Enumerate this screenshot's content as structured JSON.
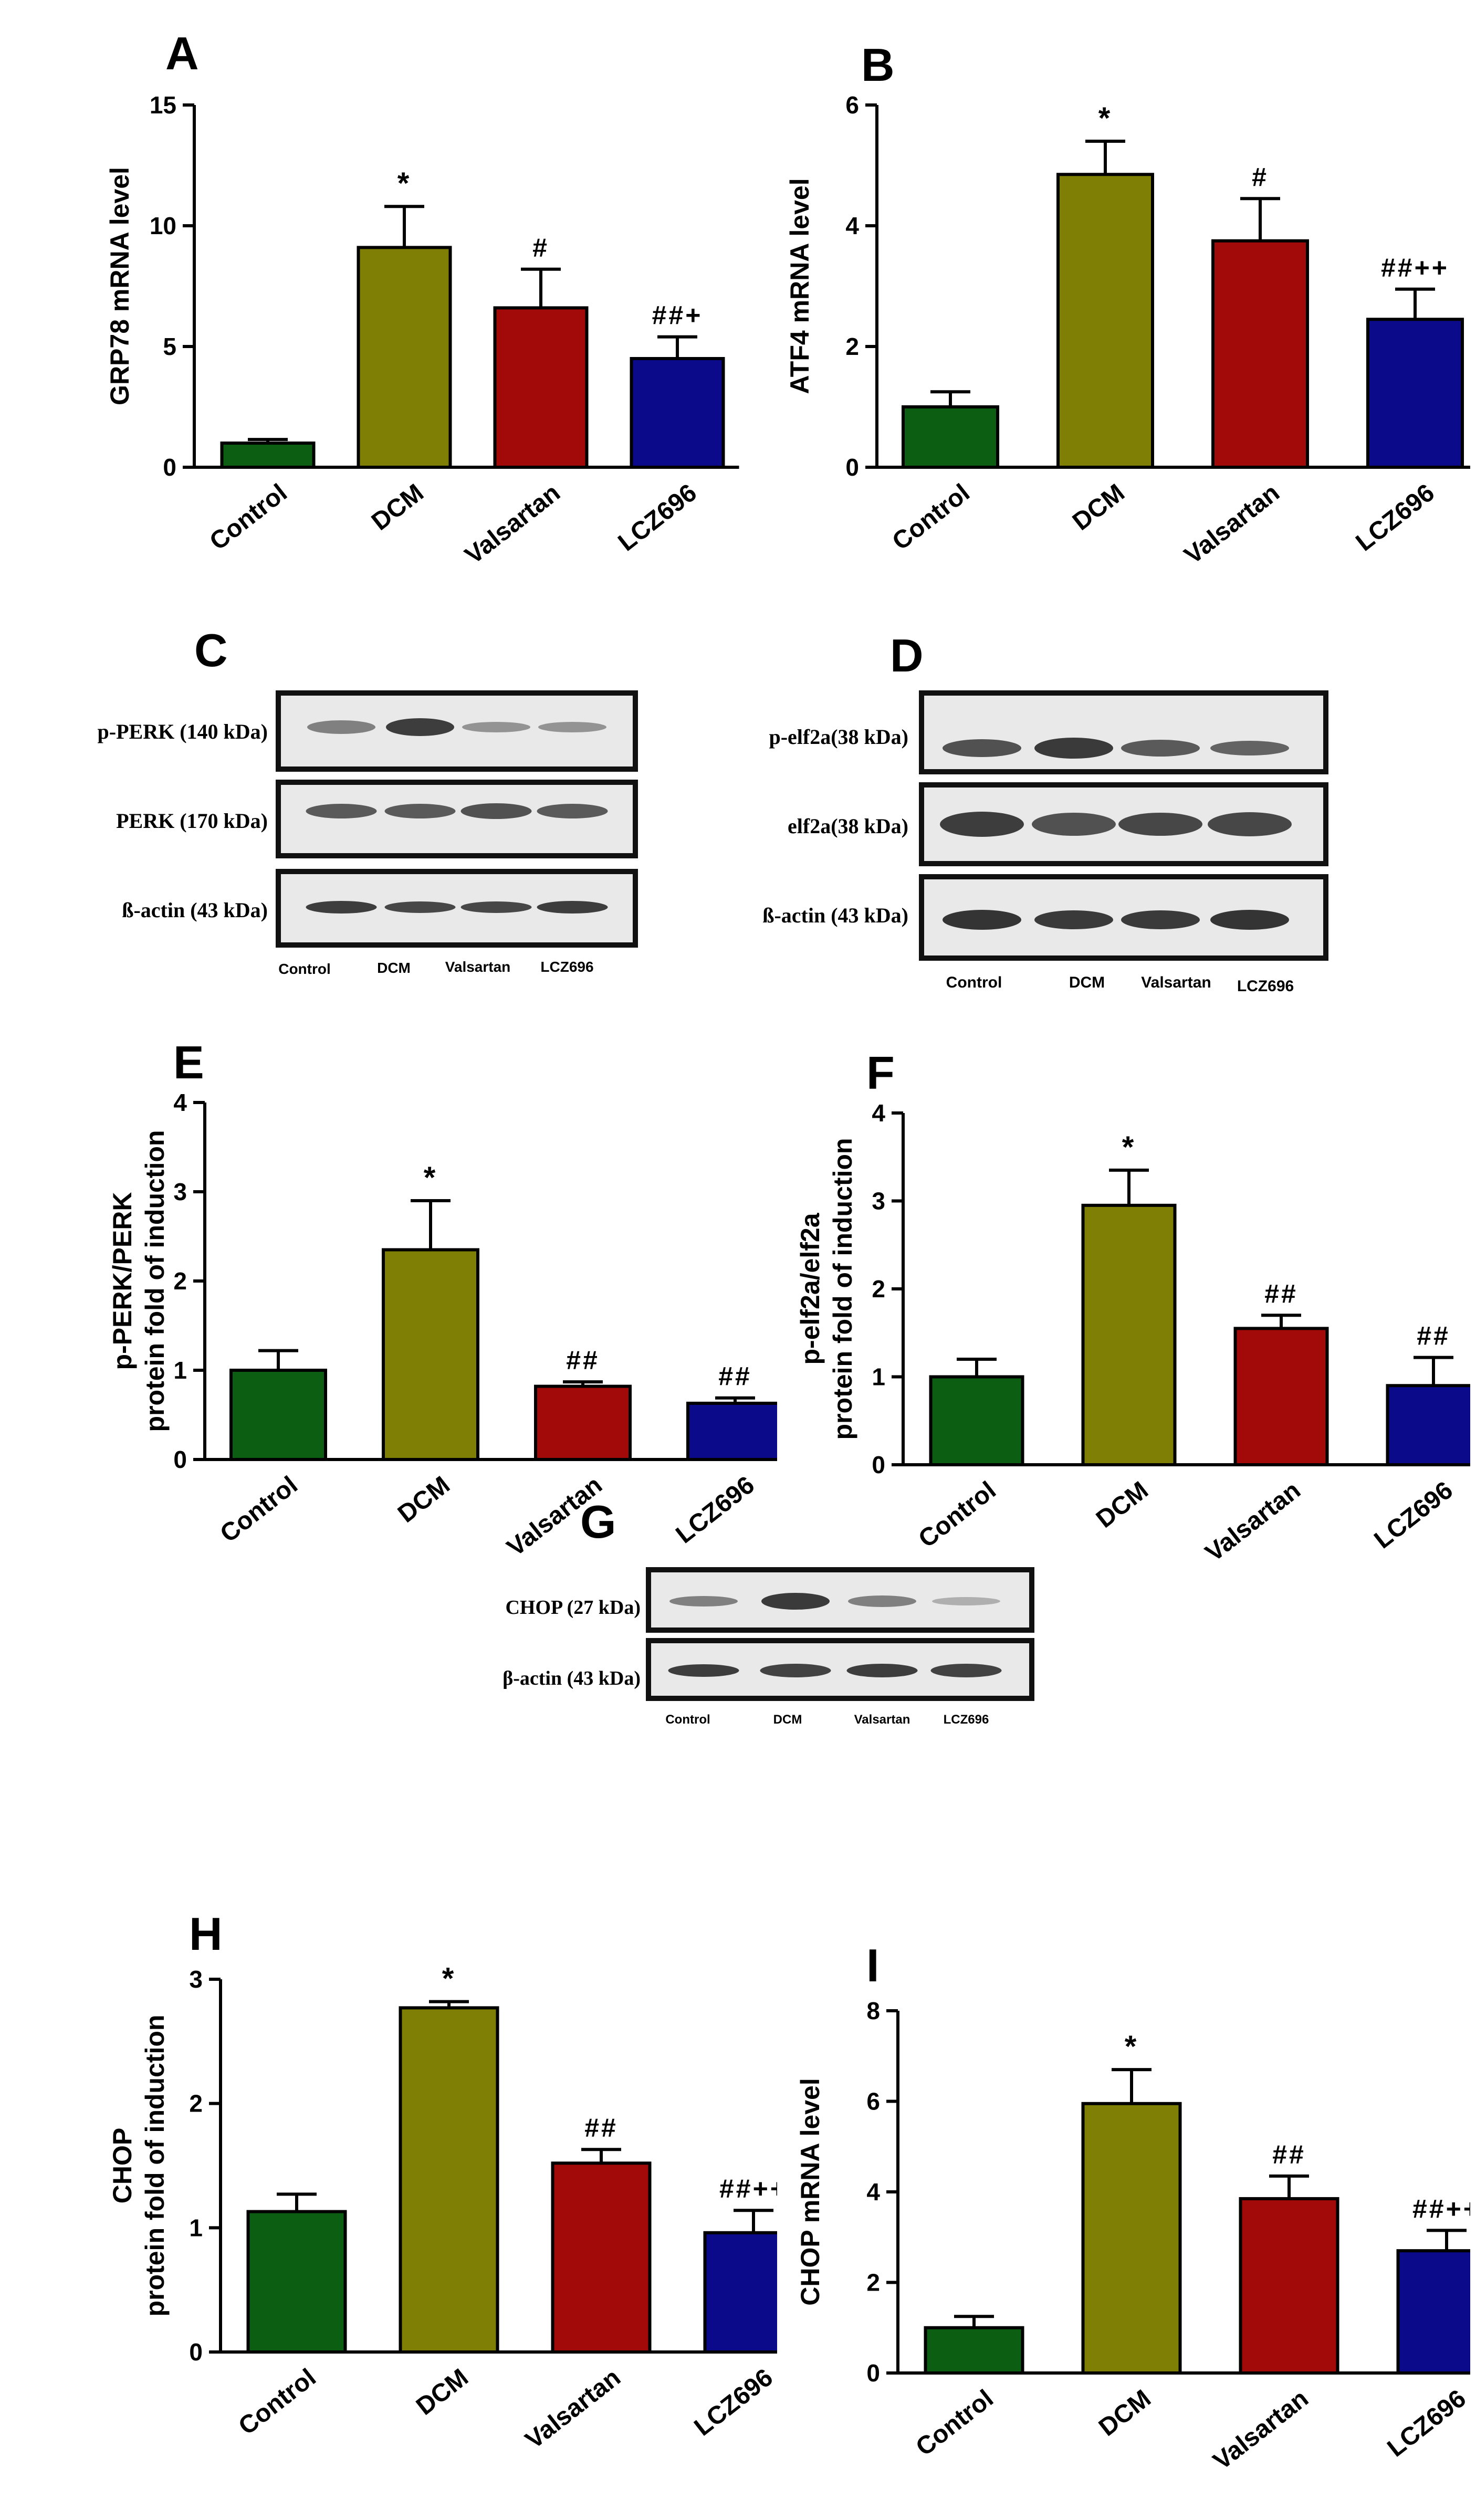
{
  "colors": {
    "control": "#0b5e12",
    "dcm": "#7f7f05",
    "valsartan": "#a20a0a",
    "lcz696": "#0a0a8a",
    "band": "#2a2a2a",
    "blot_bg": "#e8e8e8"
  },
  "chart_data": [
    {
      "panel": "A",
      "type": "bar",
      "categories": [
        "Control",
        "DCM",
        "Valsartan",
        "LCZ696"
      ],
      "values": [
        1.0,
        9.1,
        6.6,
        4.5
      ],
      "errors": [
        0.15,
        1.7,
        1.6,
        0.9
      ],
      "annotations": [
        "",
        "*",
        "#",
        "##+"
      ],
      "ylabel": "GRP78 mRNA level",
      "ylim": [
        0,
        15
      ],
      "yticks": [
        "0",
        "5",
        "10",
        "15"
      ]
    },
    {
      "panel": "B",
      "type": "bar",
      "categories": [
        "Control",
        "DCM",
        "Valsartan",
        "LCZ696"
      ],
      "values": [
        1.0,
        4.85,
        3.75,
        2.45
      ],
      "errors": [
        0.25,
        0.55,
        0.7,
        0.5
      ],
      "annotations": [
        "",
        "*",
        "#",
        "##++"
      ],
      "ylabel": "ATF4 mRNA level",
      "ylim": [
        0,
        6
      ],
      "yticks": [
        "0",
        "2",
        "4",
        "6"
      ]
    },
    {
      "panel": "E",
      "type": "bar",
      "categories": [
        "Control",
        "DCM",
        "Valsartan",
        "LCZ696"
      ],
      "values": [
        1.0,
        2.35,
        0.82,
        0.63
      ],
      "errors": [
        0.22,
        0.55,
        0.05,
        0.06
      ],
      "annotations": [
        "",
        "*",
        "##",
        "##"
      ],
      "ylabel": [
        "p-PERK/PERK",
        "protein fold of induction"
      ],
      "ylim": [
        0,
        4
      ],
      "yticks": [
        "0",
        "1",
        "2",
        "3",
        "4"
      ]
    },
    {
      "panel": "F",
      "type": "bar",
      "categories": [
        "Control",
        "DCM",
        "Valsartan",
        "LCZ696"
      ],
      "values": [
        1.0,
        2.95,
        1.55,
        0.9
      ],
      "errors": [
        0.2,
        0.4,
        0.15,
        0.32
      ],
      "annotations": [
        "",
        "*",
        "##",
        "##"
      ],
      "ylabel": [
        "p-elf2a/elf2a",
        "protein fold of induction"
      ],
      "ylim": [
        0,
        4
      ],
      "yticks": [
        "0",
        "1",
        "2",
        "3",
        "4"
      ]
    },
    {
      "panel": "H",
      "type": "bar",
      "categories": [
        "Control",
        "DCM",
        "Valsartan",
        "LCZ696"
      ],
      "values": [
        1.13,
        2.77,
        1.52,
        0.96
      ],
      "errors": [
        0.14,
        0.05,
        0.11,
        0.18
      ],
      "annotations": [
        "",
        "*",
        "##",
        "##++"
      ],
      "ylabel": [
        "CHOP",
        "protein fold of induction"
      ],
      "ylim": [
        0,
        3
      ],
      "yticks": [
        "0",
        "1",
        "2",
        "3"
      ]
    },
    {
      "panel": "I",
      "type": "bar",
      "categories": [
        "Control",
        "DCM",
        "Valsartan",
        "LCZ696"
      ],
      "values": [
        1.0,
        5.95,
        3.85,
        2.7
      ],
      "errors": [
        0.25,
        0.75,
        0.5,
        0.45
      ],
      "annotations": [
        "",
        "*",
        "##",
        "##++"
      ],
      "ylabel": "CHOP mRNA level",
      "ylim": [
        0,
        8
      ],
      "yticks": [
        "0",
        "2",
        "4",
        "6",
        "8"
      ]
    }
  ],
  "blots": {
    "C": {
      "letter": "C",
      "rows": [
        "p-PERK (140 kDa)",
        "PERK (170 kDa)",
        "ß-actin (43 kDa)"
      ],
      "lanes": [
        "Control",
        "DCM",
        "Valsartan",
        "LCZ696"
      ]
    },
    "D": {
      "letter": "D",
      "rows": [
        "p-elf2a(38 kDa)",
        "elf2a(38 kDa)",
        "ß-actin (43 kDa)"
      ],
      "lanes": [
        "Control",
        "DCM",
        "Valsartan",
        "LCZ696"
      ]
    },
    "G": {
      "letter": "G",
      "rows": [
        "CHOP (27 kDa)",
        "β-actin (43 kDa)"
      ],
      "lanes": [
        "Control",
        "DCM",
        "Valsartan",
        "LCZ696"
      ]
    }
  }
}
